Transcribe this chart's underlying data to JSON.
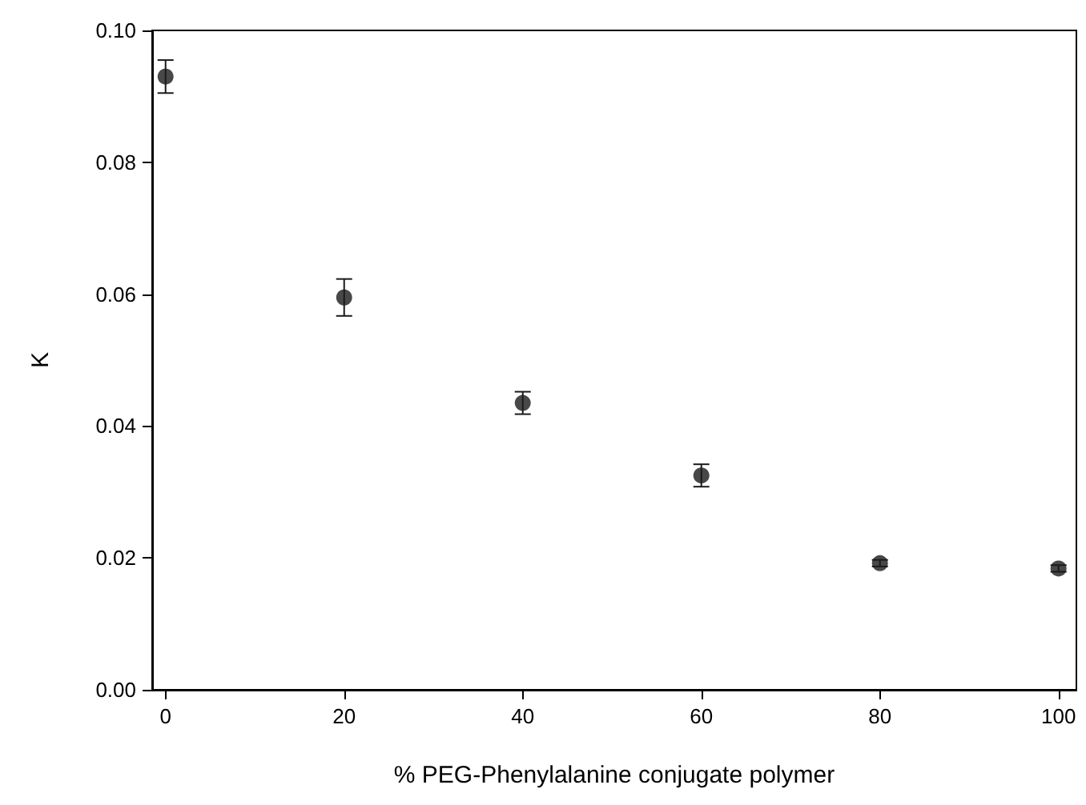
{
  "chart_data": {
    "type": "scatter",
    "xlabel": "% PEG-Phenylalanine conjugate polymer",
    "ylabel": "K",
    "x": [
      0,
      20,
      40,
      60,
      80,
      100
    ],
    "values": [
      0.093,
      0.0595,
      0.0435,
      0.0325,
      0.0192,
      0.0184
    ],
    "errors": [
      0.0025,
      0.0028,
      0.0017,
      0.0017,
      0.0005,
      0.0005
    ],
    "color": "#1a1a1a",
    "marker": "circle",
    "xlim": [
      -1.5,
      102
    ],
    "xticks": [
      0,
      20,
      40,
      60,
      80,
      100
    ],
    "ylim": [
      0,
      0.1
    ],
    "yticks": [
      {
        "value": 0,
        "label": "0.00"
      },
      {
        "value": 0.02,
        "label": "0.02"
      },
      {
        "value": 0.04,
        "label": "0.04"
      },
      {
        "value": 0.06,
        "label": "0.06"
      },
      {
        "value": 0.08,
        "label": "0.08"
      },
      {
        "value": 0.1,
        "label": "0.10"
      }
    ]
  }
}
